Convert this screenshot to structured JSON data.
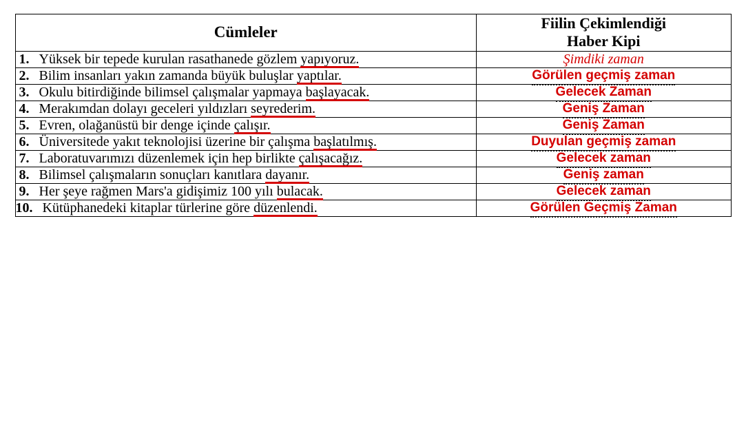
{
  "header": {
    "col_sentences": "Cümleler",
    "col_answer_line1": "Fiilin Çekimlendiği",
    "col_answer_line2": "Haber Kipi"
  },
  "rows": [
    {
      "num": "1.",
      "sentence_plain": "Yüksek bir tepede kurulan rasathanede gözlem ",
      "sentence_verb": "yapıyoruz.",
      "underline_left_pct": 84,
      "underline_width_pct": 16,
      "answer": "Şimdiki zaman",
      "answer_italic": true,
      "answer_dotted": false
    },
    {
      "num": "2.",
      "sentence_plain": "Bilim insanları yakın zamanda büyük buluşlar ",
      "sentence_verb": "yaptılar.",
      "underline_left_pct": 85,
      "underline_width_pct": 15,
      "answer": "Görülen geçmiş zaman",
      "answer_italic": false,
      "answer_dotted": true
    },
    {
      "num": "3.",
      "sentence_plain": "Okulu bitirdiğinde bilimsel çalışmalar yapmaya ",
      "sentence_verb": "başlayacak.",
      "underline_left_pct": 82,
      "underline_width_pct": 18,
      "answer": "Gelecek Zaman",
      "answer_italic": false,
      "answer_dotted": true
    },
    {
      "num": "4.",
      "sentence_plain": "Merakımdan dolayı geceleri yıldızları ",
      "sentence_verb": "seyrederim.",
      "underline_left_pct": 77,
      "underline_width_pct": 23,
      "answer": "Geniş Zaman",
      "answer_italic": false,
      "answer_dotted": true
    },
    {
      "num": "5.",
      "sentence_plain": "Evren, olağanüstü bir denge içinde ",
      "sentence_verb": "çalışır.",
      "underline_left_pct": 81,
      "underline_width_pct": 19,
      "answer": "Geniş Zaman",
      "answer_italic": false,
      "answer_dotted": true
    },
    {
      "num": "6.",
      "sentence_plain": "Üniversitede yakıt teknolojisi üzerine bir çalışma ",
      "sentence_verb": "başlatılmış.",
      "underline_left_pct": 82,
      "underline_width_pct": 18,
      "answer": "Duyulan geçmiş zaman",
      "answer_italic": false,
      "answer_dotted": true
    },
    {
      "num": "7.",
      "sentence_plain": "Laboratuvarımızı düzenlemek için hep birlikte ",
      "sentence_verb": "çalışacağız.",
      "underline_left_pct": 81,
      "underline_width_pct": 19,
      "answer": "Gelecek zaman",
      "answer_italic": false,
      "answer_dotted": true
    },
    {
      "num": "8.",
      "sentence_plain": "Bilimsel çalışmaların sonuçları kanıtlara ",
      "sentence_verb": "dayanır.",
      "underline_left_pct": 84,
      "underline_width_pct": 16,
      "answer": "Geniş zaman",
      "answer_italic": false,
      "answer_dotted": true
    },
    {
      "num": "9.",
      "sentence_plain": "Her şeye rağmen Mars'a gidişimiz 100 yılı ",
      "sentence_verb": "bulacak.",
      "underline_left_pct": 84,
      "underline_width_pct": 16,
      "answer": "Gelecek zaman",
      "answer_italic": false,
      "answer_dotted": true
    },
    {
      "num": "10.",
      "sentence_plain": "Kütüphanedeki kitaplar türlerine göre ",
      "sentence_verb": "düzenlendi.",
      "underline_left_pct": 78,
      "underline_width_pct": 22,
      "answer": "Görülen Geçmiş Zaman",
      "answer_italic": false,
      "answer_dotted": true
    }
  ],
  "colors": {
    "answer_color": "#d40000",
    "underline_color": "#d40000",
    "text_color": "#000000",
    "border_color": "#000000",
    "background": "#ffffff"
  }
}
